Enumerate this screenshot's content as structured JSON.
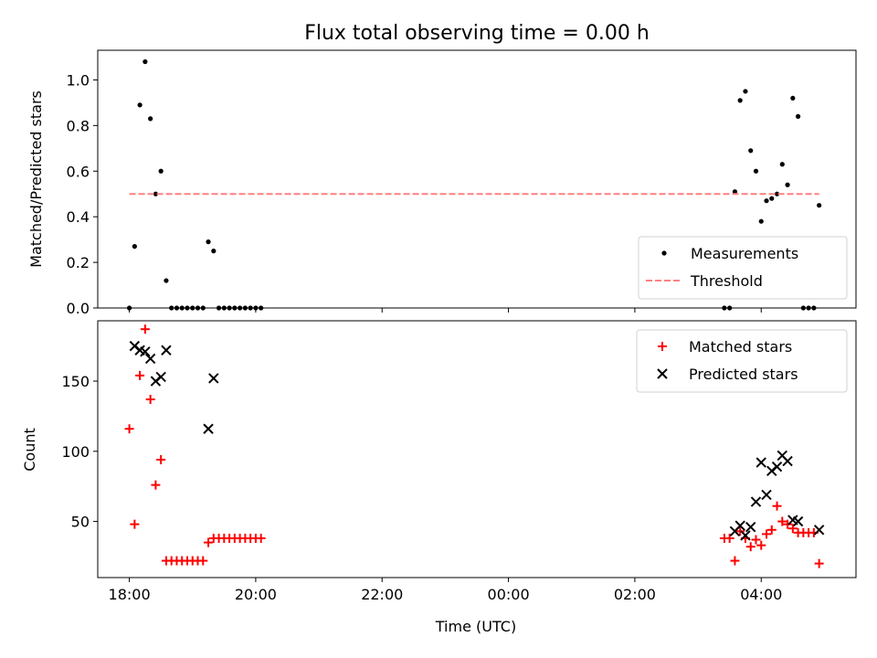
{
  "chart_data": [
    {
      "type": "scatter",
      "title": "Flux total observing time = 0.00 h",
      "ylabel": "Matched/Predicted stars",
      "xlabel": "",
      "xlim_hours": [
        17.5,
        29.5
      ],
      "ylim": [
        0,
        1.13
      ],
      "yticks": [
        "0.0",
        "0.2",
        "0.4",
        "0.6",
        "0.8",
        "1.0"
      ],
      "ytick_values": [
        0,
        0.2,
        0.4,
        0.6,
        0.8,
        1.0
      ],
      "legend_position": "lower-right",
      "series": [
        {
          "name": "Measurements",
          "marker": "dot",
          "color": "#000000",
          "x": [
            "18:00",
            "18:05",
            "18:10",
            "18:15",
            "18:20",
            "18:25",
            "18:30",
            "18:35",
            "18:40",
            "18:45",
            "18:50",
            "18:55",
            "19:00",
            "19:05",
            "19:10",
            "19:15",
            "19:20",
            "19:25",
            "19:30",
            "19:35",
            "19:40",
            "19:45",
            "19:50",
            "19:55",
            "20:00",
            "20:05",
            "03:25",
            "03:30",
            "03:35",
            "03:40",
            "03:45",
            "03:50",
            "03:55",
            "04:00",
            "04:05",
            "04:10",
            "04:15",
            "04:20",
            "04:25",
            "04:30",
            "04:35",
            "04:40",
            "04:45",
            "04:50",
            "04:55"
          ],
          "y": [
            0.0,
            0.27,
            0.89,
            1.08,
            0.83,
            0.5,
            0.6,
            0.12,
            0.0,
            0.0,
            0.0,
            0.0,
            0.0,
            0.0,
            0.0,
            0.29,
            0.25,
            0.0,
            0.0,
            0.0,
            0.0,
            0.0,
            0.0,
            0.0,
            0.0,
            0.0,
            0.0,
            0.0,
            0.51,
            0.91,
            0.95,
            0.69,
            0.6,
            0.38,
            0.47,
            0.48,
            0.5,
            0.63,
            0.54,
            0.92,
            0.84,
            0.0,
            0.0,
            0.0,
            0.45
          ]
        },
        {
          "name": "Threshold",
          "style": "dashed",
          "color": "#ff8080",
          "x": [
            "18:00",
            "04:55"
          ],
          "y": [
            0.5,
            0.5
          ]
        }
      ]
    },
    {
      "type": "scatter",
      "title": "",
      "ylabel": "Count",
      "xlabel": "Time (UTC)",
      "xlim_hours": [
        17.5,
        29.5
      ],
      "ylim": [
        10,
        193
      ],
      "yticks": [
        "50",
        "100",
        "150"
      ],
      "ytick_values": [
        50,
        100,
        150
      ],
      "xticks": [
        "18:00",
        "20:00",
        "22:00",
        "00:00",
        "02:00",
        "04:00"
      ],
      "xtick_hours": [
        18,
        20,
        22,
        24,
        26,
        28
      ],
      "legend_position": "upper-right",
      "series": [
        {
          "name": "Matched stars",
          "marker": "plus",
          "color": "#ff0000",
          "x": [
            "18:00",
            "18:05",
            "18:10",
            "18:15",
            "18:20",
            "18:25",
            "18:30",
            "18:35",
            "18:40",
            "18:45",
            "18:50",
            "18:55",
            "19:00",
            "19:05",
            "19:10",
            "19:15",
            "19:20",
            "19:25",
            "19:30",
            "19:35",
            "19:40",
            "19:45",
            "19:50",
            "19:55",
            "20:00",
            "20:05",
            "03:25",
            "03:30",
            "03:35",
            "03:40",
            "03:45",
            "03:50",
            "03:55",
            "04:00",
            "04:05",
            "04:10",
            "04:15",
            "04:20",
            "04:25",
            "04:30",
            "04:35",
            "04:40",
            "04:45",
            "04:50",
            "04:55"
          ],
          "y": [
            116,
            48,
            154,
            187,
            137,
            76,
            94,
            22,
            22,
            22,
            22,
            22,
            22,
            22,
            22,
            35,
            38,
            38,
            38,
            38,
            38,
            38,
            38,
            38,
            38,
            38,
            38,
            38,
            22,
            43,
            38,
            32,
            37,
            33,
            41,
            44,
            61,
            50,
            48,
            45,
            42,
            42,
            42,
            42,
            20
          ]
        },
        {
          "name": "Predicted stars",
          "marker": "cross",
          "color": "#000000",
          "x": [
            "18:05",
            "18:10",
            "18:15",
            "18:20",
            "18:25",
            "18:30",
            "18:35",
            "19:15",
            "19:20",
            "03:35",
            "03:40",
            "03:45",
            "03:50",
            "03:55",
            "04:00",
            "04:05",
            "04:10",
            "04:15",
            "04:20",
            "04:25",
            "04:30",
            "04:35",
            "04:55"
          ],
          "y": [
            175,
            172,
            171,
            166,
            150,
            153,
            172,
            116,
            152,
            43,
            47,
            40,
            46,
            64,
            92,
            69,
            86,
            89,
            97,
            93,
            51,
            50,
            44
          ]
        }
      ]
    }
  ]
}
